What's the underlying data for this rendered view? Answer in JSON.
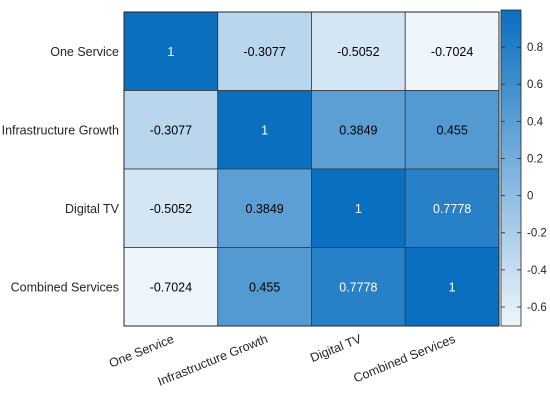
{
  "chart_data": {
    "type": "heatmap",
    "row_labels": [
      "One Service",
      "Infrastructure Growth",
      "Digital TV",
      "Combined Services"
    ],
    "col_labels": [
      "One Service",
      "Infrastructure Growth",
      "Digital TV",
      "Combined Services"
    ],
    "values": [
      [
        1,
        -0.3077,
        -0.5052,
        -0.7024
      ],
      [
        -0.3077,
        1,
        0.3849,
        0.455
      ],
      [
        -0.5052,
        0.3849,
        1,
        0.7778
      ],
      [
        -0.7024,
        0.455,
        0.7778,
        1
      ]
    ],
    "cell_labels": [
      [
        "1",
        "-0.3077",
        "-0.5052",
        "-0.7024"
      ],
      [
        "-0.3077",
        "1",
        "0.3849",
        "0.455"
      ],
      [
        "-0.5052",
        "0.3849",
        "1",
        "0.7778"
      ],
      [
        "-0.7024",
        "0.455",
        "0.7778",
        "1"
      ]
    ],
    "colorbar": {
      "range": [
        -0.7024,
        1
      ],
      "ticks": [
        0.8,
        0.6,
        0.4,
        0.2,
        0,
        -0.2,
        -0.4,
        -0.6
      ],
      "tick_labels": [
        "0.8",
        "0.6",
        "0.4",
        "0.2",
        "0",
        "-0.2",
        "-0.4",
        "-0.6"
      ]
    },
    "colors": {
      "low": "#eef5fb",
      "high": "#0a6fbf",
      "text_dark": "#000000",
      "text_light": "#ffffff"
    }
  }
}
